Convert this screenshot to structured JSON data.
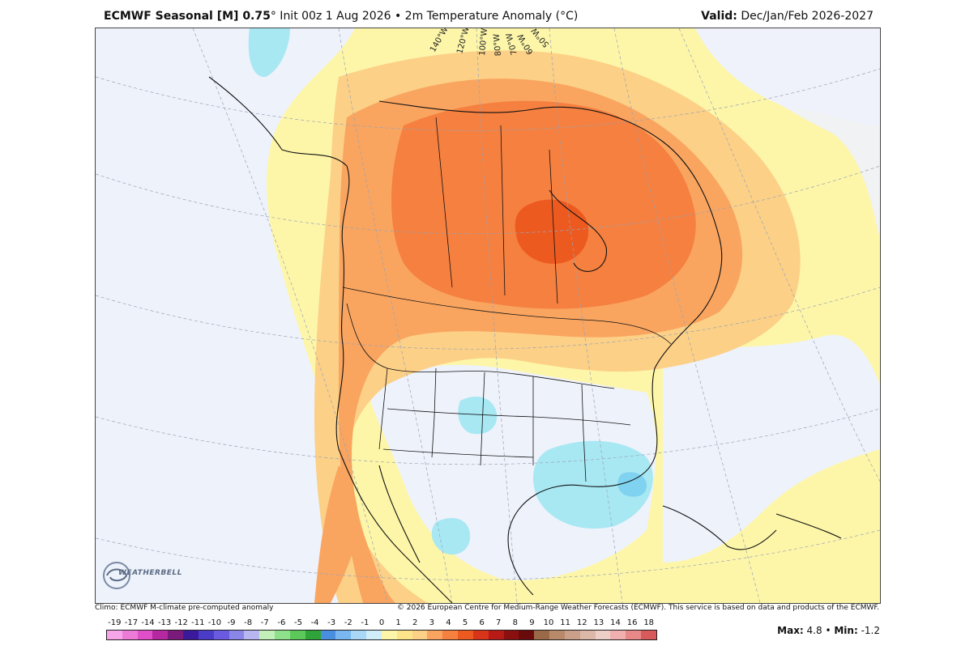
{
  "header": {
    "title_bold": "ECMWF Seasonal [M] 0.75",
    "title_rest": "° Init 00z 1 Aug 2026 • 2m Temperature Anomaly (°C)",
    "valid_label": "Valid:",
    "valid_value": " Dec/Jan/Feb 2026-2027"
  },
  "map": {
    "longitude_labels": [
      "140°W",
      "120°W",
      "100°W",
      "80°W",
      "70°W",
      "60°W",
      "50°W"
    ],
    "logo_text": "WEATHERBELL",
    "colors": {
      "background_warm": "#fdf6a9",
      "cool_ocean": "#eef2fb",
      "light_orange": "#fcd087",
      "orange": "#f9a560",
      "deep_orange": "#f58040",
      "red_orange": "#ec5a20",
      "light_blue": "#a8e8f3",
      "blue": "#7fd3f0"
    }
  },
  "footer": {
    "left": "Climo: ECMWF M-climate pre-computed anomaly",
    "right": "© 2026 European Centre for Medium-Range Weather Forecasts (ECMWF). This service is based on data and products of the ECMWF."
  },
  "colorbar": {
    "labels": [
      "-19",
      "-17",
      "-14",
      "-13",
      "-12",
      "-11",
      "-10",
      "-9",
      "-8",
      "-7",
      "-6",
      "-5",
      "-4",
      "-3",
      "-2",
      "-1",
      "0",
      "1",
      "2",
      "3",
      "4",
      "5",
      "6",
      "7",
      "8",
      "9",
      "10",
      "11",
      "12",
      "13",
      "14",
      "16",
      "18"
    ],
    "colors": [
      "#f6a6e8",
      "#ee7ad8",
      "#df4fc8",
      "#b5289f",
      "#7a1a7a",
      "#3a1a9a",
      "#4b3cc8",
      "#6a5ae0",
      "#8a86e8",
      "#b8b6f0",
      "#c2f0b8",
      "#8fe08a",
      "#5cc85a",
      "#2ea43a",
      "#4a8ee0",
      "#7ab6f0",
      "#a8d8f6",
      "#d0eefa",
      "#fdf6a9",
      "#fce48a",
      "#fcd087",
      "#f9a560",
      "#f58040",
      "#ec5a20",
      "#d8341a",
      "#b81a16",
      "#8a1010",
      "#6a0a0a",
      "#9a6a48",
      "#b88a6a",
      "#caa08a",
      "#dcb8a8",
      "#ecd0c8",
      "#f0b0b0",
      "#e88888",
      "#d85a5a"
    ]
  },
  "stats": {
    "max_label": "Max:",
    "max_value": " 4.8",
    "sep": " • ",
    "min_label": "Min:",
    "min_value": " -1.2"
  }
}
